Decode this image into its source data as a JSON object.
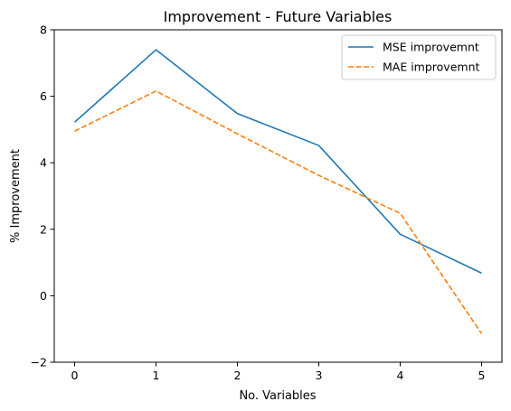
{
  "chart_data": {
    "type": "line",
    "title": "Improvement - Future Variables",
    "xlabel": "No. Variables",
    "ylabel": "% Improvement",
    "x": [
      0,
      1,
      2,
      3,
      4,
      5
    ],
    "xlim": [
      -0.25,
      5.25
    ],
    "ylim": [
      -2,
      8
    ],
    "xticks": [
      0,
      1,
      2,
      3,
      4,
      5
    ],
    "yticks": [
      -2,
      0,
      2,
      4,
      6,
      8
    ],
    "grid": false,
    "legend_position": "top-right",
    "series": [
      {
        "name": "MSE improvemnt",
        "color": "#1f77b4",
        "style": "solid",
        "values": [
          5.22,
          7.4,
          5.48,
          4.52,
          1.85,
          0.68
        ]
      },
      {
        "name": "MAE improvemnt",
        "color": "#ff7f0e",
        "style": "dashed",
        "values": [
          4.95,
          6.16,
          4.87,
          3.62,
          2.48,
          -1.14
        ]
      }
    ]
  }
}
